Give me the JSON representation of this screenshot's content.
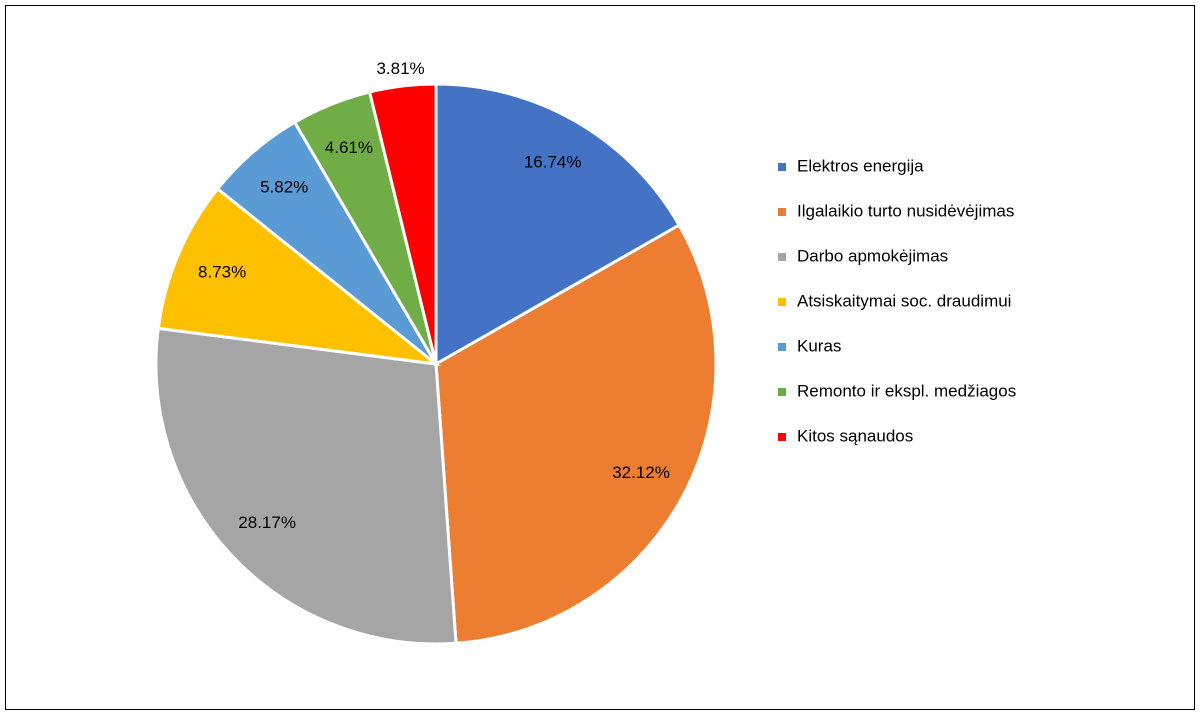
{
  "chart_data": {
    "type": "pie",
    "categories": [
      "Elektros energija",
      "Ilgalaikio turto nusidėvėjimas",
      "Darbo apmokėjimas",
      "Atsiskaitymai soc. draudimui",
      "Kuras",
      "Remonto ir ekspl. medžiagos",
      "Kitos sąnaudos"
    ],
    "values": [
      16.74,
      32.12,
      28.17,
      8.73,
      5.82,
      4.61,
      3.81
    ],
    "value_labels": [
      "16.74%",
      "32.12%",
      "28.17%",
      "8.73%",
      "5.82%",
      "4.61%",
      "3.81%"
    ],
    "colors": [
      "#4472c4",
      "#ed7d31",
      "#a5a5a5",
      "#ffc000",
      "#5b9bd5",
      "#70ad47",
      "#ff0000"
    ],
    "legend": "right"
  }
}
